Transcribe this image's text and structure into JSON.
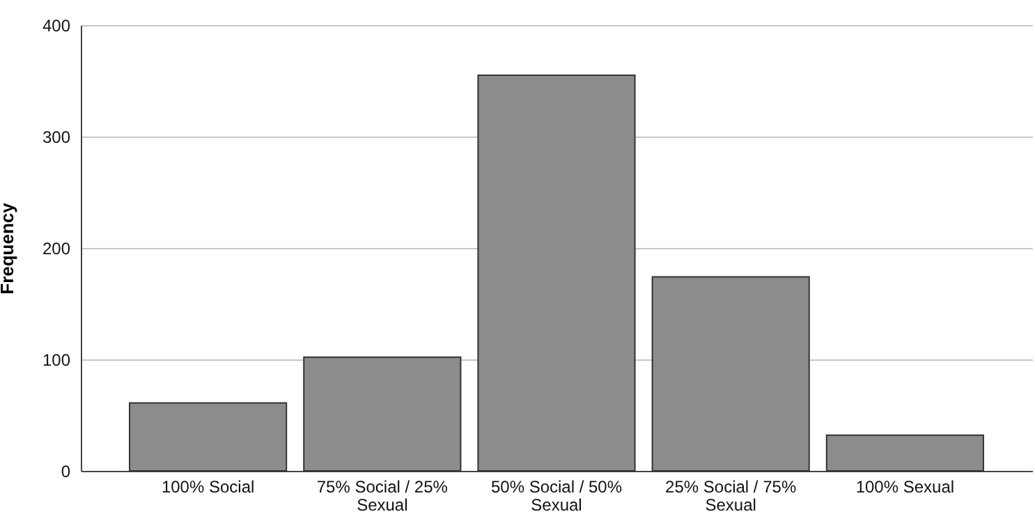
{
  "chart_data": {
    "type": "bar",
    "ylabel": "Frequency",
    "categories": [
      "100% Social",
      "75% Social / 25% Sexual",
      "50% Social / 50% Sexual",
      "25% Social / 75% Sexual",
      "100% Sexual"
    ],
    "values": [
      61,
      102,
      355,
      174,
      32
    ],
    "color": "#8c8c8c",
    "ylim": [
      0,
      400
    ],
    "yticks": [
      0,
      100,
      200,
      300,
      400
    ],
    "grid": "y"
  }
}
